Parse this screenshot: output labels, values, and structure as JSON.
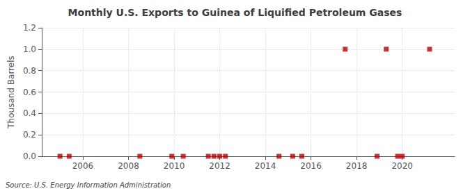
{
  "chart_data": {
    "type": "scatter",
    "title": "Monthly U.S. Exports to Guinea of Liquified Petroleum Gases",
    "ylabel": "Thousand Barrels",
    "annotations": [
      "Source: U.S. Energy Information Administration"
    ],
    "x": [
      2005.0,
      2005.4,
      2008.5,
      2009.9,
      2010.4,
      2011.5,
      2011.75,
      2012.0,
      2012.25,
      2014.6,
      2015.2,
      2015.6,
      2017.5,
      2018.9,
      2019.3,
      2019.8,
      2020.0,
      2021.2
    ],
    "values": [
      0.0,
      0.0,
      0.0,
      0.0,
      0.0,
      0.0,
      0.0,
      0.0,
      0.0,
      0.0,
      0.0,
      0.0,
      1.0,
      0.0,
      1.0,
      0.0,
      0.0,
      1.0
    ],
    "color": "#bb0000",
    "marker": "square",
    "xlim": [
      2004.2,
      2022.3
    ],
    "xticks": [
      2006,
      2008,
      2010,
      2012,
      2014,
      2016,
      2018,
      2020
    ],
    "ylim": [
      0,
      1.2
    ],
    "yticks": [
      {
        "value": 0.0,
        "label": "0.0"
      },
      0.2,
      0.4,
      0.6,
      0.8,
      {
        "value": 1.0,
        "label": "1.0"
      },
      1.2
    ],
    "grid": true
  }
}
